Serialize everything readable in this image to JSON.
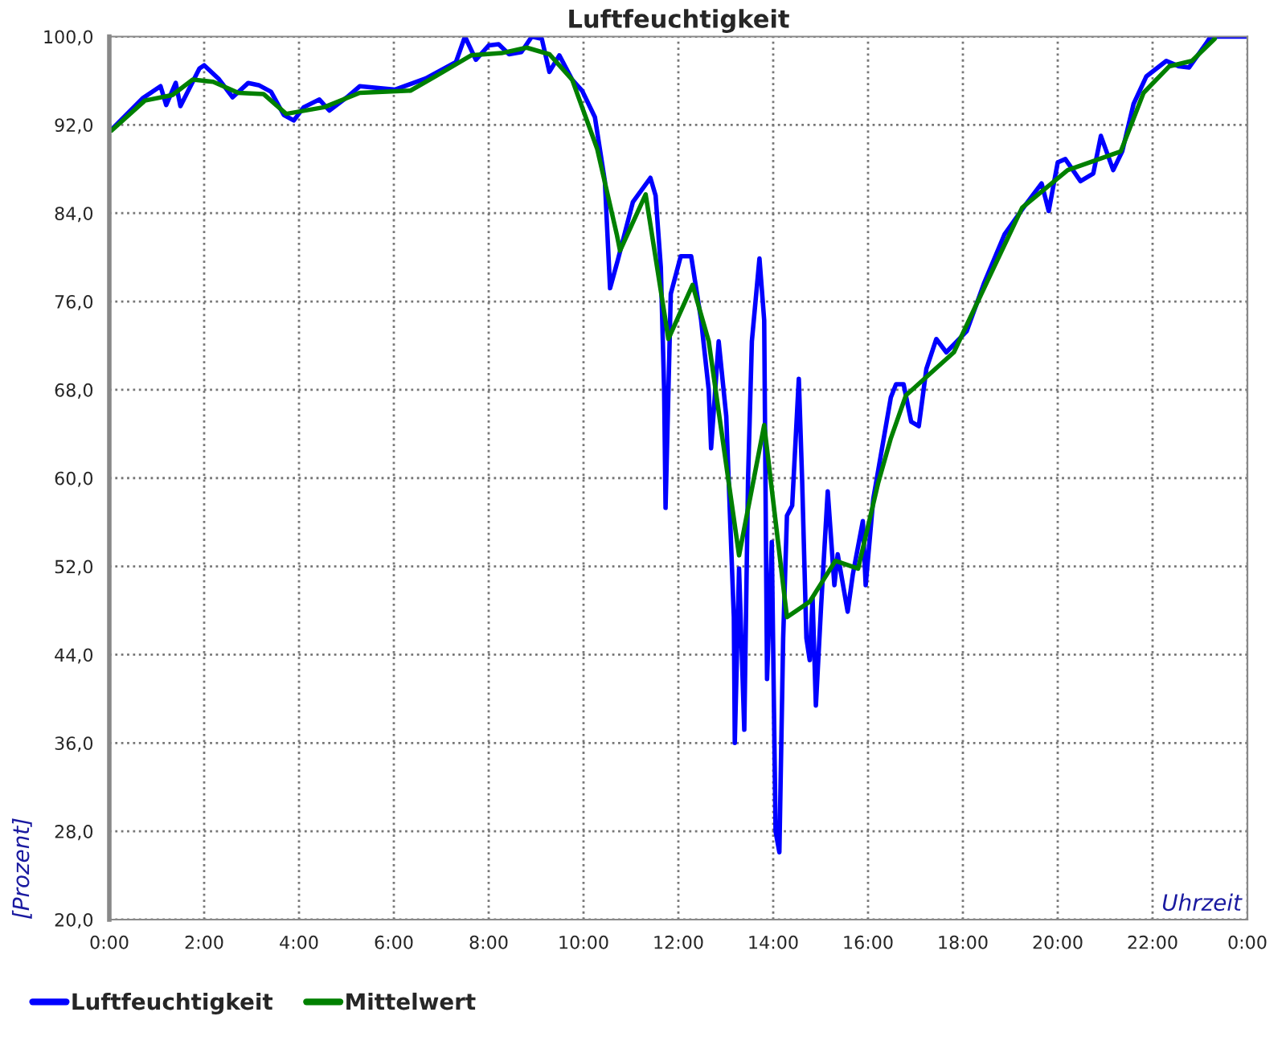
{
  "chart_data": {
    "type": "line",
    "title": "Luftfeuchtigkeit",
    "xlabel": "Uhrzeit",
    "ylabel": "[Prozent]",
    "xlim": [
      0,
      24
    ],
    "ylim": [
      20,
      100
    ],
    "xticks": [
      {
        "value": 0,
        "label": "0:00"
      },
      {
        "value": 2,
        "label": "2:00"
      },
      {
        "value": 4,
        "label": "4:00"
      },
      {
        "value": 6,
        "label": "6:00"
      },
      {
        "value": 8,
        "label": "8:00"
      },
      {
        "value": 10,
        "label": "10:00"
      },
      {
        "value": 12,
        "label": "12:00"
      },
      {
        "value": 14,
        "label": "14:00"
      },
      {
        "value": 16,
        "label": "16:00"
      },
      {
        "value": 18,
        "label": "18:00"
      },
      {
        "value": 20,
        "label": "20:00"
      },
      {
        "value": 22,
        "label": "22:00"
      },
      {
        "value": 24,
        "label": "0:00"
      }
    ],
    "yticks": [
      {
        "value": 20,
        "label": "20,0"
      },
      {
        "value": 28,
        "label": "28,0"
      },
      {
        "value": 36,
        "label": "36,0"
      },
      {
        "value": 44,
        "label": "44,0"
      },
      {
        "value": 52,
        "label": "52,0"
      },
      {
        "value": 60,
        "label": "60,0"
      },
      {
        "value": 68,
        "label": "68,0"
      },
      {
        "value": 76,
        "label": "76,0"
      },
      {
        "value": 84,
        "label": "84,0"
      },
      {
        "value": 92,
        "label": "92,0"
      },
      {
        "value": 100,
        "label": "100,0"
      }
    ],
    "grid": true,
    "legend": "bottom",
    "marker": "none",
    "line_style": "solid",
    "series": [
      {
        "name": "Luftfeuchtigkeit",
        "color": "#0000ff",
        "x": [
          0.03,
          0.7,
          1.08,
          1.2,
          1.4,
          1.5,
          1.9,
          2.0,
          2.3,
          2.6,
          2.93,
          3.15,
          3.41,
          3.68,
          3.89,
          4.1,
          4.43,
          4.64,
          5.01,
          5.28,
          6.03,
          6.67,
          7.31,
          7.5,
          7.73,
          8.0,
          8.21,
          8.43,
          8.69,
          8.91,
          9.12,
          9.28,
          9.49,
          9.76,
          9.97,
          10.24,
          10.45,
          10.56,
          10.72,
          11.04,
          11.41,
          11.52,
          11.63,
          11.7,
          11.73,
          11.84,
          12.05,
          12.27,
          12.48,
          12.64,
          12.69,
          12.85,
          13.01,
          13.17,
          13.19,
          13.28,
          13.39,
          13.47,
          13.55,
          13.71,
          13.81,
          13.87,
          13.97,
          14.05,
          14.13,
          14.21,
          14.29,
          14.4,
          14.54,
          14.61,
          14.7,
          14.77,
          14.83,
          14.9,
          15.01,
          15.15,
          15.29,
          15.36,
          15.57,
          15.68,
          15.89,
          15.95,
          16.11,
          16.48,
          16.59,
          16.75,
          16.91,
          17.07,
          17.23,
          17.44,
          17.65,
          18.08,
          18.45,
          18.88,
          19.31,
          19.66,
          19.81,
          20.0,
          20.16,
          20.48,
          20.75,
          20.91,
          21.17,
          21.36,
          21.6,
          21.87,
          22.29,
          22.56,
          22.77,
          23.15,
          23.22,
          24.0
        ],
        "values": [
          91.5,
          94.4,
          95.5,
          93.8,
          95.8,
          93.7,
          97.1,
          97.4,
          96.2,
          94.5,
          95.8,
          95.6,
          95.0,
          92.9,
          92.4,
          93.6,
          94.3,
          93.3,
          94.5,
          95.5,
          95.2,
          96.2,
          97.7,
          100.0,
          97.9,
          99.2,
          99.3,
          98.4,
          98.6,
          100.0,
          99.8,
          96.8,
          98.3,
          96.1,
          95.1,
          92.7,
          86.9,
          77.2,
          79.7,
          85.0,
          87.2,
          85.6,
          79.1,
          68.0,
          57.3,
          76.7,
          80.1,
          80.1,
          74.3,
          68.0,
          62.7,
          72.4,
          65.6,
          47.4,
          36.0,
          51.8,
          37.2,
          60.0,
          72.4,
          79.9,
          74.3,
          41.8,
          54.2,
          28.0,
          26.1,
          45.5,
          56.6,
          57.5,
          69.0,
          59.8,
          45.5,
          43.5,
          49.1,
          39.4,
          48.4,
          58.8,
          50.3,
          53.1,
          47.9,
          51.3,
          56.1,
          50.3,
          58.1,
          67.3,
          68.5,
          68.5,
          65.1,
          64.7,
          69.9,
          72.6,
          71.4,
          73.3,
          77.7,
          82.1,
          84.7,
          86.7,
          84.2,
          88.6,
          88.9,
          86.9,
          87.6,
          91.0,
          87.9,
          89.6,
          93.9,
          96.4,
          97.8,
          97.3,
          97.2,
          99.5,
          100.0,
          100.0
        ]
      },
      {
        "name": "Mittelwert",
        "color": "#008000",
        "x": [
          0.05,
          0.75,
          1.33,
          1.76,
          2.19,
          2.72,
          3.25,
          3.73,
          4.53,
          5.28,
          6.35,
          6.88,
          7.63,
          8.27,
          8.8,
          9.28,
          9.76,
          10.29,
          10.7,
          10.77,
          11.31,
          11.79,
          12.3,
          12.64,
          13.28,
          13.81,
          14.29,
          14.77,
          15.31,
          15.79,
          16.21,
          16.48,
          16.8,
          17.81,
          18.61,
          19.25,
          20.21,
          21.33,
          21.81,
          22.35,
          22.83,
          23.31
        ],
        "values": [
          91.5,
          94.2,
          94.7,
          96.1,
          95.9,
          94.9,
          94.8,
          93.0,
          93.6,
          94.9,
          95.1,
          96.4,
          98.3,
          98.5,
          99.0,
          98.4,
          96.1,
          89.8,
          82.1,
          80.6,
          85.7,
          72.6,
          77.5,
          72.4,
          53.0,
          64.8,
          47.4,
          48.8,
          52.5,
          51.8,
          59.5,
          63.6,
          67.5,
          71.4,
          78.7,
          84.5,
          87.9,
          89.6,
          94.9,
          97.3,
          97.8,
          99.8
        ]
      }
    ]
  }
}
